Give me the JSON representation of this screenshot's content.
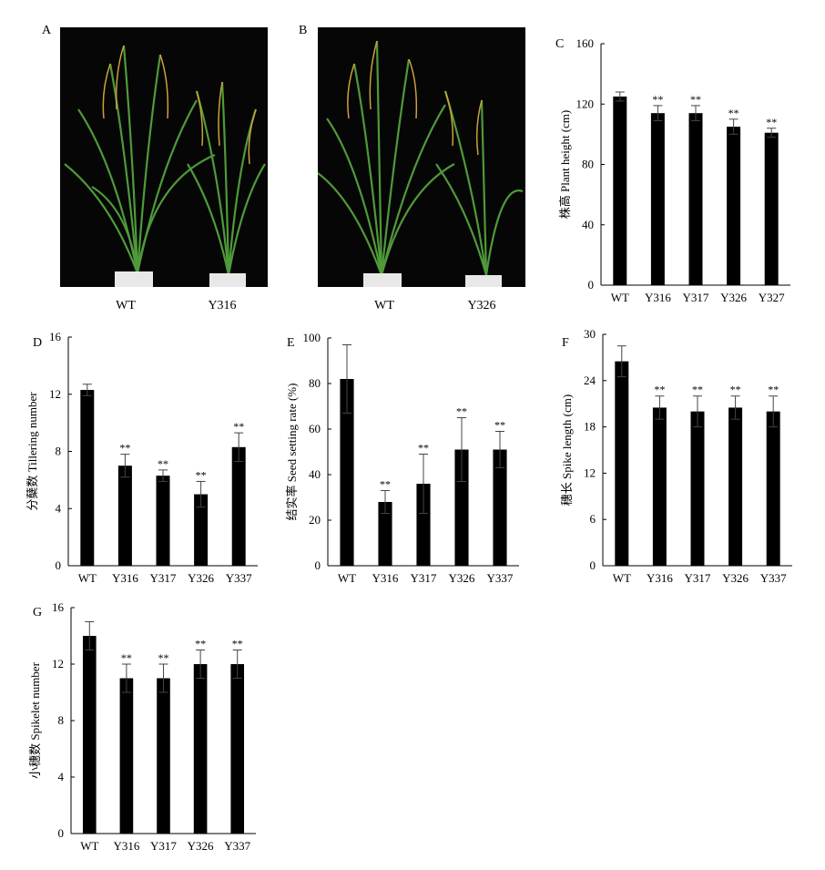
{
  "photos": [
    {
      "panel": "A",
      "captions": [
        "WT",
        "Y316"
      ]
    },
    {
      "panel": "B",
      "captions": [
        "WT",
        "Y326"
      ]
    }
  ],
  "colors": {
    "bar": "#000000",
    "background": "#ffffff",
    "photo_background": "#060606",
    "plant_green": "#4f9a3a"
  },
  "chart_data": [
    {
      "panel": "C",
      "type": "bar",
      "ylabel": "株高 Plant height (cm)",
      "ylim": [
        0,
        160
      ],
      "yticks": [
        0,
        40,
        80,
        120,
        160
      ],
      "categories": [
        "WT",
        "Y316",
        "Y317",
        "Y326",
        "Y327"
      ],
      "values": [
        125,
        114,
        114,
        105,
        101
      ],
      "errors": [
        3,
        5,
        5,
        5,
        3
      ],
      "significance": [
        "",
        "**",
        "**",
        "**",
        "**"
      ]
    },
    {
      "panel": "D",
      "type": "bar",
      "ylabel": "分蘖数 Tillering number",
      "ylim": [
        0,
        16
      ],
      "yticks": [
        0,
        4,
        8,
        12,
        16
      ],
      "categories": [
        "WT",
        "Y316",
        "Y317",
        "Y326",
        "Y337"
      ],
      "values": [
        12.3,
        7.0,
        6.3,
        5.0,
        8.3
      ],
      "errors": [
        0.4,
        0.8,
        0.4,
        0.9,
        1.0
      ],
      "significance": [
        "",
        "**",
        "**",
        "**",
        "**"
      ]
    },
    {
      "panel": "E",
      "type": "bar",
      "ylabel": "结实率 Seed setting rate (%)",
      "ylim": [
        0,
        100
      ],
      "yticks": [
        0,
        20,
        40,
        60,
        80,
        100
      ],
      "categories": [
        "WT",
        "Y316",
        "Y317",
        "Y326",
        "Y337"
      ],
      "values": [
        82,
        28,
        36,
        51,
        51
      ],
      "errors": [
        15,
        5,
        13,
        14,
        8
      ],
      "significance": [
        "",
        "**",
        "**",
        "**",
        "**"
      ]
    },
    {
      "panel": "F",
      "type": "bar",
      "ylabel": "穗长 Spike length (cm)",
      "ylim": [
        0,
        30
      ],
      "yticks": [
        0,
        6,
        12,
        18,
        24,
        30
      ],
      "categories": [
        "WT",
        "Y316",
        "Y317",
        "Y326",
        "Y337"
      ],
      "values": [
        26.5,
        20.5,
        20.0,
        20.5,
        20.0
      ],
      "errors": [
        2.0,
        1.5,
        2.0,
        1.5,
        2.0
      ],
      "significance": [
        "",
        "**",
        "**",
        "**",
        "**"
      ]
    },
    {
      "panel": "G",
      "type": "bar",
      "ylabel": "小穗数 Spikelet number",
      "ylim": [
        0,
        16
      ],
      "yticks": [
        0,
        4,
        8,
        12,
        16
      ],
      "categories": [
        "WT",
        "Y316",
        "Y317",
        "Y326",
        "Y337"
      ],
      "values": [
        14,
        11,
        11,
        12,
        12
      ],
      "errors": [
        1.0,
        1.0,
        1.0,
        1.0,
        1.0
      ],
      "significance": [
        "",
        "**",
        "**",
        "**",
        "**"
      ]
    }
  ]
}
